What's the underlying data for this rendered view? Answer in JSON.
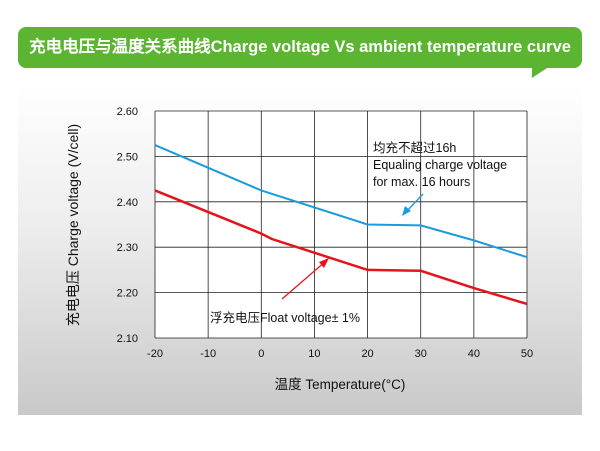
{
  "header": {
    "title": "充电电压与温度关系曲线Charge voltage Vs ambient temperature curve"
  },
  "chart_data": {
    "type": "line",
    "title": "充电电压与温度关系曲线Charge voltage Vs ambient temperature curve",
    "xlabel": "温度 Temperature(°C)",
    "ylabel": "充电电压 Charge voltage (V/cell)",
    "xlim": [
      -20,
      50
    ],
    "ylim": [
      2.1,
      2.6
    ],
    "xticks": [
      "-20",
      "-10",
      "0",
      "10",
      "20",
      "30",
      "40",
      "50"
    ],
    "yticks": [
      "2.10",
      "2.20",
      "2.30",
      "2.40",
      "2.50",
      "2.60"
    ],
    "grid": true,
    "series": [
      {
        "key": "equalize",
        "color": "#1a9be0",
        "x": [
          -20,
          0,
          20,
          30,
          40,
          50
        ],
        "y": [
          2.525,
          2.425,
          2.35,
          2.348,
          2.315,
          2.278
        ]
      },
      {
        "key": "float",
        "color": "#e3141b",
        "x": [
          -20,
          0,
          2,
          20,
          30,
          40,
          50
        ],
        "y": [
          2.425,
          2.33,
          2.318,
          2.25,
          2.248,
          2.21,
          2.175
        ]
      }
    ],
    "annotations": {
      "equalize": [
        "均充不超过16h",
        "Equaling charge voltage",
        "for max. 16 hours"
      ],
      "float": "浮充电压Float voltage± 1%"
    }
  }
}
